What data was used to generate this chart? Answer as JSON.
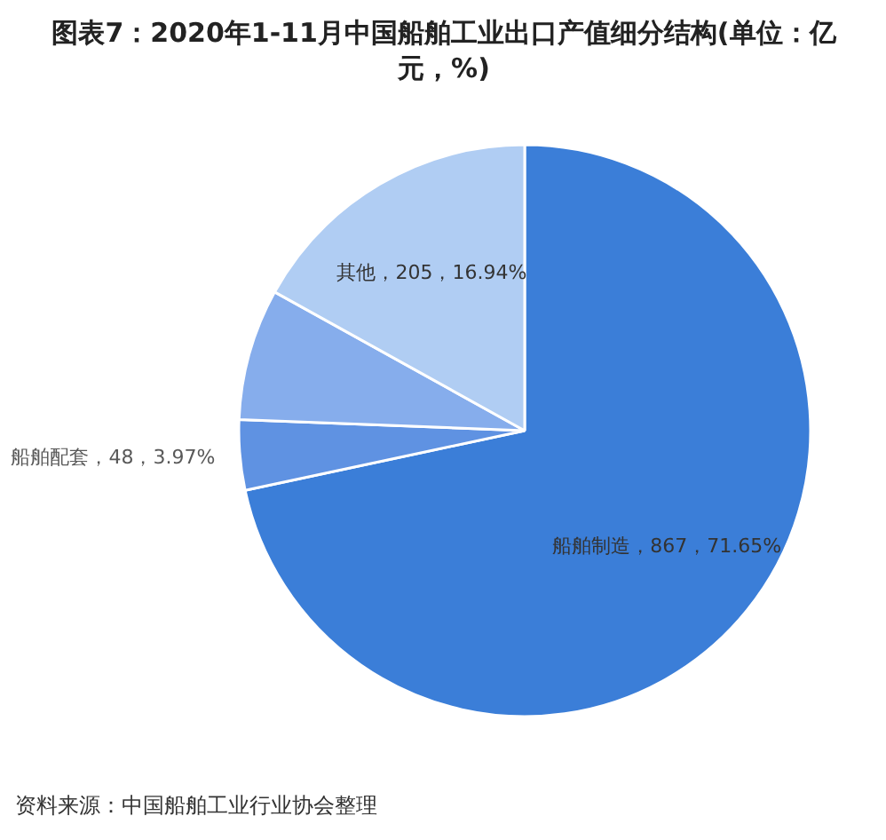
{
  "chart_data": {
    "type": "pie",
    "title": "图表7：2020年1-11月中国船舶工业出口产值细分结构(单位：亿元，%)",
    "categories": [
      "船舶制造",
      "船舶配套",
      null,
      "其他"
    ],
    "values": [
      867,
      48,
      90,
      205
    ],
    "colors": [
      "#3b7ed8",
      "#5f92e2",
      "#86adec",
      "#b0cdf3"
    ],
    "value_labels": [
      "867，71.65%",
      "48，3.97%",
      null,
      "205，16.94%"
    ],
    "annotations": [
      "资料来源：中国船舶工业行业协会整理"
    ]
  }
}
